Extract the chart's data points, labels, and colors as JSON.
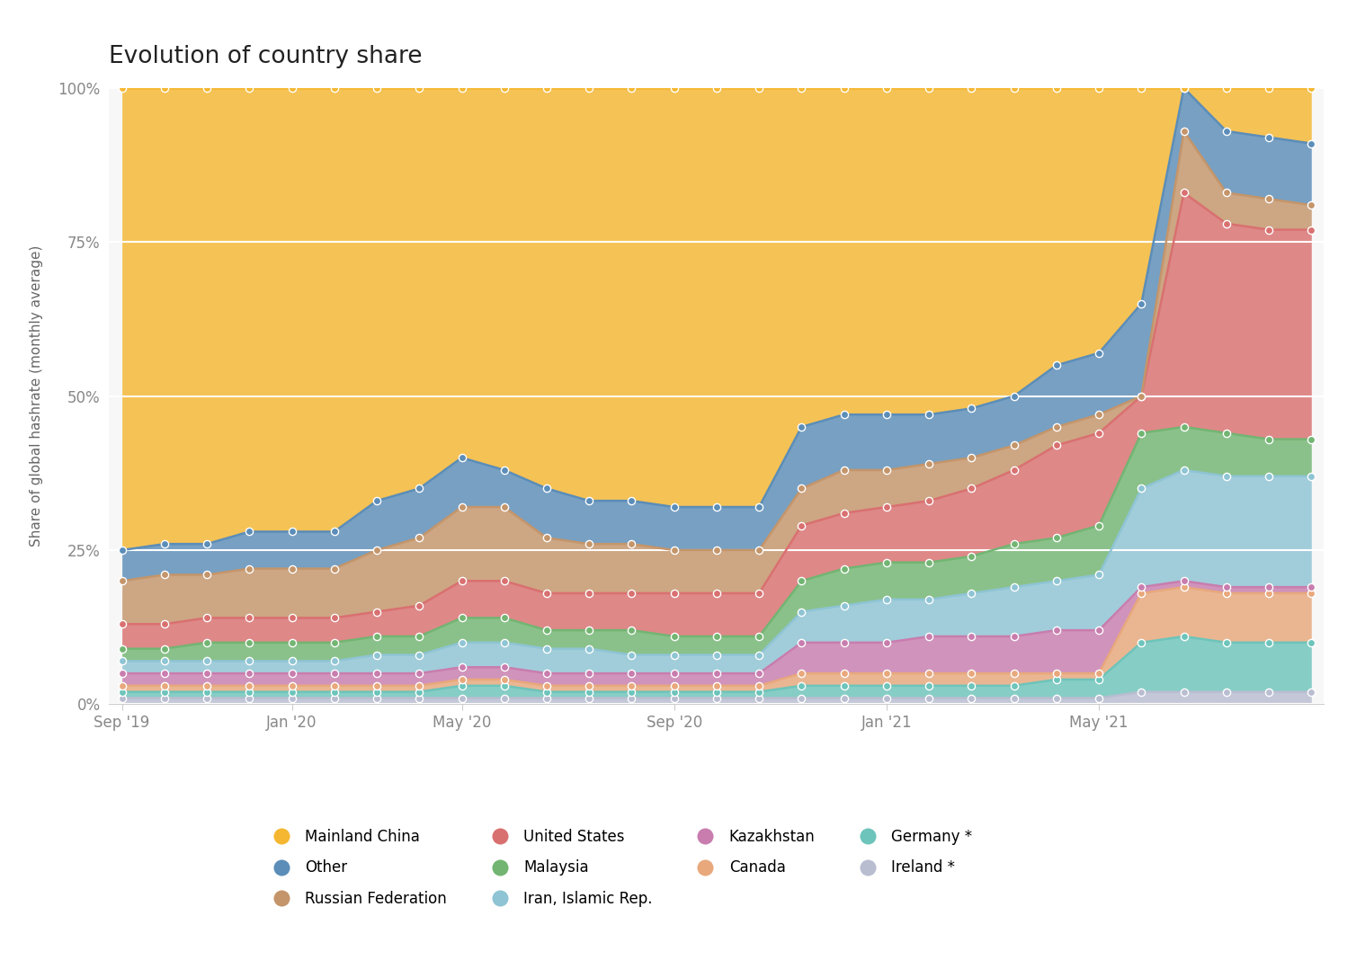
{
  "title": "Evolution of country share",
  "ylabel": "Share of global hashrate (monthly average)",
  "background_color": "#ffffff",
  "x_tick_labels": [
    "Sep '19",
    "Jan '20",
    "May '20",
    "Sep '20",
    "Jan '21",
    "May '21"
  ],
  "x_tick_positions": [
    0,
    4,
    8,
    13,
    18,
    23
  ],
  "y_ticks": [
    0,
    25,
    50,
    75,
    100
  ],
  "layers": [
    {
      "name": "Ireland *",
      "color": "#B8BDD0",
      "cumulative_top": [
        1,
        1,
        1,
        1,
        1,
        1,
        1,
        1,
        1,
        1,
        1,
        1,
        1,
        1,
        1,
        1,
        1,
        1,
        1,
        1,
        1,
        1,
        1,
        1,
        2,
        2,
        2,
        2,
        2
      ]
    },
    {
      "name": "Germany *",
      "color": "#6DC4BA",
      "cumulative_top": [
        2,
        2,
        2,
        2,
        2,
        2,
        2,
        2,
        3,
        3,
        2,
        2,
        2,
        2,
        2,
        2,
        3,
        3,
        3,
        3,
        3,
        3,
        4,
        4,
        10,
        11,
        10,
        10,
        10
      ]
    },
    {
      "name": "Canada",
      "color": "#E8A87C",
      "cumulative_top": [
        3,
        3,
        3,
        3,
        3,
        3,
        3,
        3,
        4,
        4,
        3,
        3,
        3,
        3,
        3,
        3,
        5,
        5,
        5,
        5,
        5,
        5,
        5,
        5,
        18,
        19,
        18,
        18,
        18
      ]
    },
    {
      "name": "Kazakhstan",
      "color": "#C87DAE",
      "cumulative_top": [
        5,
        5,
        5,
        5,
        5,
        5,
        5,
        5,
        6,
        6,
        5,
        5,
        5,
        5,
        5,
        5,
        10,
        10,
        10,
        11,
        11,
        11,
        12,
        12,
        19,
        20,
        19,
        19,
        19
      ]
    },
    {
      "name": "Iran, Islamic Rep.",
      "color": "#8EC4D4",
      "cumulative_top": [
        7,
        7,
        7,
        7,
        7,
        7,
        8,
        8,
        10,
        10,
        9,
        9,
        8,
        8,
        8,
        8,
        15,
        16,
        17,
        17,
        18,
        19,
        20,
        21,
        35,
        38,
        37,
        37,
        37
      ]
    },
    {
      "name": "Malaysia",
      "color": "#72B572",
      "cumulative_top": [
        9,
        9,
        10,
        10,
        10,
        10,
        11,
        11,
        14,
        14,
        12,
        12,
        12,
        11,
        11,
        11,
        20,
        22,
        23,
        23,
        24,
        26,
        27,
        29,
        44,
        45,
        44,
        43,
        43
      ]
    },
    {
      "name": "United States",
      "color": "#D97070",
      "cumulative_top": [
        13,
        13,
        14,
        14,
        14,
        14,
        15,
        16,
        20,
        20,
        18,
        18,
        18,
        18,
        18,
        18,
        29,
        31,
        32,
        33,
        35,
        38,
        42,
        44,
        50,
        83,
        78,
        77,
        77
      ]
    },
    {
      "name": "Russian Federation",
      "color": "#C4956A",
      "cumulative_top": [
        20,
        21,
        21,
        22,
        22,
        22,
        25,
        27,
        32,
        32,
        27,
        26,
        26,
        25,
        25,
        25,
        35,
        38,
        38,
        39,
        40,
        42,
        45,
        47,
        50,
        93,
        83,
        82,
        81
      ]
    },
    {
      "name": "Other",
      "color": "#5B8DB8",
      "cumulative_top": [
        25,
        26,
        26,
        28,
        28,
        28,
        33,
        35,
        40,
        38,
        35,
        33,
        33,
        32,
        32,
        32,
        45,
        47,
        47,
        47,
        48,
        50,
        55,
        57,
        65,
        100,
        93,
        92,
        91
      ]
    },
    {
      "name": "Mainland China",
      "color": "#F5B731",
      "cumulative_top": [
        100,
        100,
        100,
        100,
        100,
        100,
        100,
        100,
        100,
        100,
        100,
        100,
        100,
        100,
        100,
        100,
        100,
        100,
        100,
        100,
        100,
        100,
        100,
        100,
        100,
        100,
        100,
        100,
        100
      ]
    }
  ],
  "legend_order": [
    [
      "Mainland China",
      "#F5B731"
    ],
    [
      "Other",
      "#5B8DB8"
    ],
    [
      "Russian Federation",
      "#C4956A"
    ],
    [
      "United States",
      "#D97070"
    ],
    [
      "Malaysia",
      "#72B572"
    ],
    [
      "Iran, Islamic Rep.",
      "#8EC4D4"
    ],
    [
      "Kazakhstan",
      "#C87DAE"
    ],
    [
      "Canada",
      "#E8A87C"
    ],
    [
      "Germany *",
      "#6DC4BA"
    ],
    [
      "Ireland *",
      "#B8BDD0"
    ]
  ],
  "n_points": 29
}
